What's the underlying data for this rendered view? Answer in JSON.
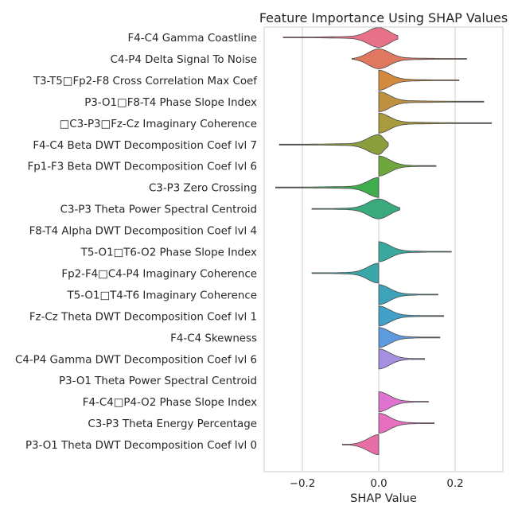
{
  "chart_data": {
    "type": "violin",
    "title": "Feature Importance Using SHAP Values",
    "xlabel": "SHAP Value",
    "ylabel": "",
    "xlim": [
      -0.3,
      0.33
    ],
    "xticks": [
      -0.2,
      0.0,
      0.2
    ],
    "xtick_labels": [
      "−0.2",
      "0.0",
      "0.2"
    ],
    "grid": true,
    "features": [
      {
        "label": "F4-C4 Gamma Coastline",
        "min": -0.25,
        "max": 0.05,
        "mode": 0.0,
        "color": "#e8718a"
      },
      {
        "label": "C4-P4 Delta Signal To Noise",
        "min": -0.07,
        "max": 0.23,
        "mode": 0.0,
        "color": "#e0785f"
      },
      {
        "label": "T3-T5□Fp2-F8 Cross Correlation Max Coef",
        "min": 0.0,
        "max": 0.21,
        "mode": 0.0,
        "color": "#d48a3e"
      },
      {
        "label": "P3-O1□F8-T4 Phase Slope Index",
        "min": 0.0,
        "max": 0.275,
        "mode": 0.0,
        "color": "#bd9140"
      },
      {
        "label": "□C3-P3□Fz-Cz Imaginary Coherence",
        "min": 0.0,
        "max": 0.295,
        "mode": 0.0,
        "color": "#a89a3d"
      },
      {
        "label": "F4-C4 Beta DWT Decomposition Coef lvl 7",
        "min": -0.26,
        "max": 0.025,
        "mode": 0.0,
        "color": "#8a9e3d"
      },
      {
        "label": "Fp1-F3 Beta DWT Decomposition Coef lvl 6",
        "min": 0.0,
        "max": 0.15,
        "mode": 0.0,
        "color": "#6fa63d"
      },
      {
        "label": "C3-P3 Zero Crossing",
        "min": -0.27,
        "max": 0.0,
        "mode": 0.0,
        "color": "#3fac4e"
      },
      {
        "label": "C3-P3 Theta Power Spectral Centroid",
        "min": -0.175,
        "max": 0.055,
        "mode": 0.0,
        "color": "#3aaa7d"
      },
      {
        "label": "F8-T4 Alpha DWT Decomposition Coef lvl 4",
        "min": 0.0,
        "max": 0.0,
        "mode": 0.0,
        "color": "#3aa891"
      },
      {
        "label": "T5-O1□T6-O2 Phase Slope Index",
        "min": 0.0,
        "max": 0.19,
        "mode": 0.0,
        "color": "#38a99c"
      },
      {
        "label": "Fp2-F4□C4-P4 Imaginary Coherence",
        "min": -0.175,
        "max": 0.0,
        "mode": 0.0,
        "color": "#3aa6aa"
      },
      {
        "label": "T5-O1□T4-T6 Imaginary Coherence",
        "min": 0.0,
        "max": 0.155,
        "mode": 0.0,
        "color": "#3ea3b8"
      },
      {
        "label": "Fz-Cz Theta DWT Decomposition Coef lvl 1",
        "min": 0.0,
        "max": 0.17,
        "mode": 0.0,
        "color": "#42a0c8"
      },
      {
        "label": "F4-C4 Skewness",
        "min": 0.0,
        "max": 0.16,
        "mode": 0.0,
        "color": "#5d9ae0"
      },
      {
        "label": "C4-P4 Gamma DWT Decomposition Coef lvl 6",
        "min": 0.0,
        "max": 0.12,
        "mode": 0.0,
        "color": "#a48fe0"
      },
      {
        "label": "P3-O1 Theta Power Spectral Centroid",
        "min": 0.0,
        "max": 0.0,
        "mode": 0.0,
        "color": "#c882d9"
      },
      {
        "label": "F4-C4□P4-O2 Phase Slope Index",
        "min": 0.0,
        "max": 0.13,
        "mode": 0.0,
        "color": "#df74cf"
      },
      {
        "label": "C3-P3 Theta Energy Percentage",
        "min": 0.0,
        "max": 0.145,
        "mode": 0.0,
        "color": "#e76fbd"
      },
      {
        "label": "P3-O1 Theta DWT Decomposition Coef lvl 0",
        "min": -0.095,
        "max": 0.0,
        "mode": 0.0,
        "color": "#e86fa6"
      }
    ]
  }
}
